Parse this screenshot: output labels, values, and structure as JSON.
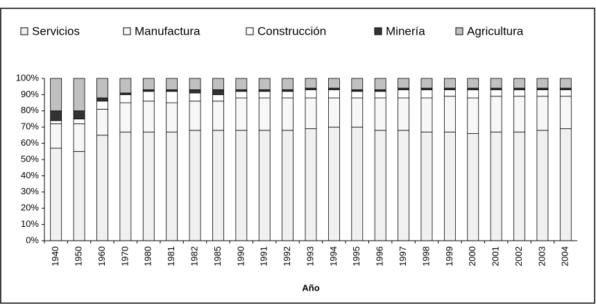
{
  "chart_data": {
    "type": "stacked-bar",
    "x_label": "Año",
    "categories": [
      "1940",
      "1950",
      "1960",
      "1970",
      "1980",
      "1981",
      "1982",
      "1985",
      "1990",
      "1991",
      "1992",
      "1993",
      "1994",
      "1995",
      "1996",
      "1997",
      "1998",
      "1999",
      "2000",
      "2001",
      "2002",
      "2003",
      "2004"
    ],
    "series": [
      {
        "name": "Servicios",
        "color": "#f0f0f0",
        "values": [
          57,
          55,
          65,
          67,
          67,
          67,
          68,
          68,
          68,
          68,
          68,
          69,
          70,
          70,
          68,
          68,
          67,
          67,
          66,
          67,
          67,
          68,
          69
        ]
      },
      {
        "name": "Manufactura",
        "color": "#f7f7f7",
        "values": [
          15,
          17,
          16,
          18,
          19,
          18,
          18,
          18,
          20,
          20,
          20,
          19,
          18,
          18,
          20,
          20,
          21,
          22,
          22,
          22,
          22,
          21,
          20
        ]
      },
      {
        "name": "Construcción",
        "color": "#ffffff",
        "values": [
          2,
          3,
          5,
          5,
          6,
          7,
          5,
          4,
          4,
          4,
          4,
          5,
          5,
          4,
          4,
          5,
          5,
          4,
          5,
          4,
          4,
          4,
          4
        ]
      },
      {
        "name": "Minería",
        "color": "#333333",
        "values": [
          6,
          5,
          2,
          1,
          1,
          1,
          2,
          3,
          1,
          1,
          1,
          1,
          1,
          1,
          1,
          1,
          1,
          1,
          1,
          1,
          1,
          1,
          1
        ]
      },
      {
        "name": "Agricultura",
        "color": "#c0c0c0",
        "values": [
          20,
          20,
          12,
          9,
          7,
          7,
          7,
          7,
          7,
          7,
          7,
          6,
          6,
          7,
          7,
          6,
          6,
          6,
          6,
          6,
          6,
          6,
          6
        ]
      }
    ],
    "ylim": [
      0,
      100
    ],
    "yticks": [
      {
        "value": 0,
        "label": "0%"
      },
      {
        "value": 10,
        "label": "10%"
      },
      {
        "value": 20,
        "label": "20%"
      },
      {
        "value": 30,
        "label": "30%"
      },
      {
        "value": 40,
        "label": "40%"
      },
      {
        "value": 50,
        "label": "50%"
      },
      {
        "value": 60,
        "label": "60%"
      },
      {
        "value": 70,
        "label": "70%"
      },
      {
        "value": 80,
        "label": "80%"
      },
      {
        "value": 90,
        "label": "90%"
      },
      {
        "value": 100,
        "label": "100%"
      }
    ],
    "legend": "top"
  }
}
